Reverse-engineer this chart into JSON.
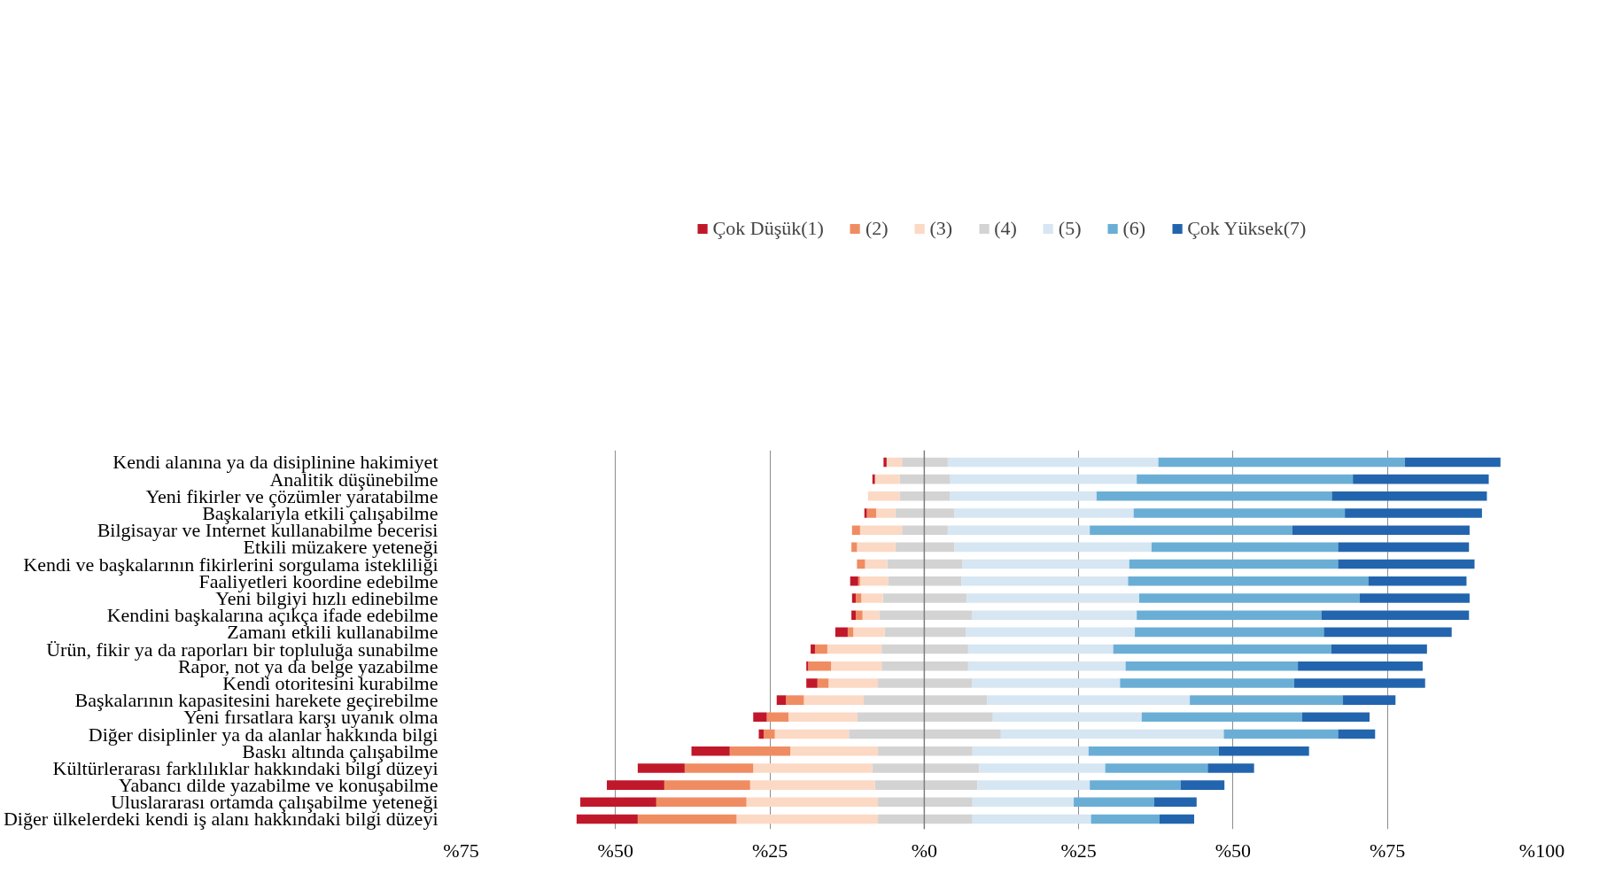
{
  "chart_data": {
    "type": "bar",
    "orientation": "horizontal",
    "stacked": true,
    "categories": [
      "Kendi alanına ya da disiplinine hakimiyet",
      "Analitik düşünebilme",
      "Yeni fikirler ve çözümler yaratabilme",
      "Başkalarıyla etkili çalışabilme",
      "Bilgisayar ve Internet kullanabilme becerisi",
      "Etkili müzakere yeteneği",
      "Kendi ve başkalarının fikirlerini sorgulama istekliliği",
      "Faaliyetleri koordine edebilme",
      "Yeni bilgiyi hızlı edinebilme",
      "Kendini başkalarına açıkça ifade edebilme",
      "Zamanı etkili kullanabilme",
      "Ürün, fikir ya da raporları bir topluluğa sunabilme",
      "Rapor, not ya da belge yazabilme",
      "Kendi otoritesini kurabilme",
      "Başkalarının kapasitesini harekete geçirebilme",
      "Yeni fırsatlara karşı uyanık olma",
      "Diğer disiplinler ya da alanlar hakkında bilgi",
      "Baskı altında çalışabilme",
      "Kültürlerarası farklılıklar hakkındaki bilgi düzeyi",
      "Yabancı dilde yazabilme ve konuşabilme",
      "Uluslararası ortamda çalışabilme yeteneği",
      "Diğer ülkelerdeki kendi iş alanı hakkındaki bilgi düzeyi"
    ],
    "series": [
      {
        "color": "#d3d3d3",
        "values": [
          -3.6,
          -4.0,
          -4.0,
          -4.7,
          -3.6,
          -4.7,
          -6.0,
          -5.8,
          -6.7,
          -7.3,
          -6.4,
          -6.9,
          -6.9,
          -7.5,
          -9.8,
          -10.9,
          -12.2,
          -7.5,
          -8.4,
          -8.0,
          -7.5,
          -7.5
        ]
      },
      {
        "name": "(3)",
        "color": "#fcd9c4",
        "values": [
          -2.5,
          -4.0,
          -5.1,
          -3.1,
          -6.8,
          -6.2,
          -3.6,
          -4.6,
          -3.5,
          -2.7,
          -5.1,
          -8.8,
          -8.2,
          -8.0,
          -9.7,
          -11.1,
          -12.0,
          -14.2,
          -19.3,
          -20.2,
          -21.3,
          -22.9
        ]
      },
      {
        "name": "(2)",
        "color": "#f08c62",
        "values": [
          0,
          0,
          0,
          -1.5,
          -1.3,
          -0.9,
          -1.3,
          -0.3,
          -0.9,
          -1.1,
          -0.9,
          -2.0,
          -3.7,
          -1.8,
          -2.9,
          -3.5,
          -1.8,
          -9.8,
          -11.1,
          -13.9,
          -14.6,
          -16.0
        ]
      },
      {
        "name": "Çok Düşük(1)",
        "color": "#c0182a",
        "values": [
          -0.5,
          -0.4,
          0,
          -0.4,
          0,
          0,
          0,
          -1.3,
          -0.6,
          -0.7,
          -2.0,
          -0.7,
          -0.3,
          -1.8,
          -1.5,
          -2.2,
          -0.8,
          -6.2,
          -7.6,
          -9.3,
          -12.3,
          -9.9
        ]
      },
      {
        "name": "(4)",
        "color": "#d3d3d3",
        "values": [
          3.8,
          4.2,
          4.2,
          4.9,
          3.8,
          4.9,
          6.2,
          6.0,
          6.9,
          7.7,
          6.7,
          7.1,
          7.1,
          7.7,
          10.2,
          11.1,
          12.4,
          7.8,
          8.9,
          8.6,
          7.8,
          7.8
        ]
      },
      {
        "name": "(5)",
        "color": "#d6e6f2",
        "values": [
          34.1,
          30.2,
          23.7,
          29.0,
          23.0,
          31.9,
          27.0,
          27.0,
          27.9,
          26.7,
          27.4,
          23.5,
          25.5,
          24.0,
          32.8,
          24.1,
          36.1,
          18.8,
          20.4,
          18.2,
          16.4,
          19.2
        ]
      },
      {
        "name": "(6)",
        "color": "#6aaed6",
        "values": [
          39.9,
          35.0,
          38.1,
          34.2,
          32.8,
          30.2,
          33.8,
          38.9,
          35.7,
          29.9,
          30.6,
          35.3,
          27.9,
          28.2,
          24.8,
          26.0,
          18.5,
          21.1,
          16.6,
          14.7,
          13.0,
          11.1
        ]
      },
      {
        "name": "Çok Yüksek(7)",
        "color": "#2265ae",
        "values": [
          15.5,
          22.0,
          25.1,
          22.2,
          28.7,
          21.2,
          22.1,
          15.9,
          17.8,
          23.9,
          20.7,
          15.5,
          20.2,
          21.2,
          8.5,
          10.9,
          6.0,
          14.6,
          7.5,
          7.1,
          6.9,
          5.6
        ]
      }
    ],
    "xlim": [
      -75,
      100
    ],
    "xticks": [
      {
        "value": -75,
        "label": "%75"
      },
      {
        "value": -50,
        "label": "%50"
      },
      {
        "value": -25,
        "label": "%25"
      },
      {
        "value": 0,
        "label": "%0"
      },
      {
        "value": 25,
        "label": "%25"
      },
      {
        "value": 50,
        "label": "%50"
      },
      {
        "value": 75,
        "label": "%75"
      },
      {
        "value": 100,
        "label": "%100"
      }
    ],
    "grid": "x",
    "legend": "top"
  }
}
